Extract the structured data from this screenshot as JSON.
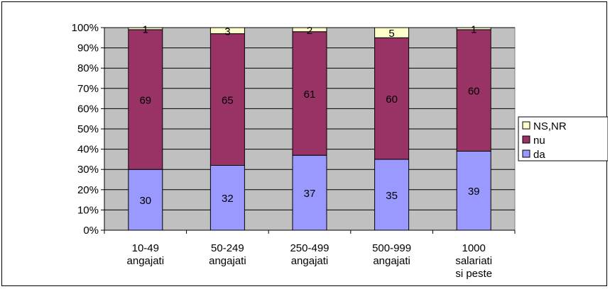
{
  "chart_data": {
    "type": "bar",
    "stacked": true,
    "percent_stacked": true,
    "categories": [
      [
        "10-49",
        "angajati"
      ],
      [
        "50-249",
        "angajati"
      ],
      [
        "250-499",
        "angajati"
      ],
      [
        "500-999",
        "angajati"
      ],
      [
        "1000",
        "salariati",
        "si peste"
      ]
    ],
    "series": [
      {
        "name": "da",
        "color": "#9999ff",
        "values": [
          30,
          32,
          37,
          35,
          39
        ]
      },
      {
        "name": "nu",
        "color": "#993366",
        "values": [
          69,
          65,
          61,
          60,
          60
        ]
      },
      {
        "name": "NS,NR",
        "color": "#ffffcc",
        "values": [
          1,
          3,
          2,
          5,
          1
        ]
      }
    ],
    "legend_order": [
      "NS,NR",
      "nu",
      "da"
    ],
    "legend_position": "right",
    "y_ticks": [
      "0%",
      "10%",
      "20%",
      "30%",
      "40%",
      "50%",
      "60%",
      "70%",
      "80%",
      "90%",
      "100%"
    ],
    "ylim": [
      0,
      100
    ],
    "plot_background": "#c0c0c0",
    "gridlines": true
  }
}
